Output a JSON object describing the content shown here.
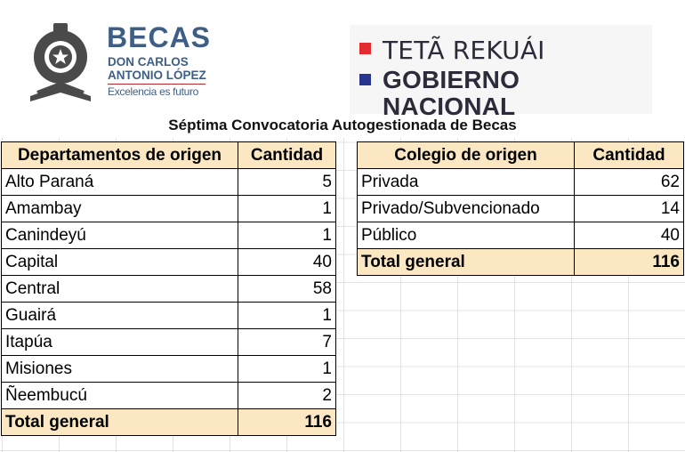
{
  "becas_logo": {
    "title": "BECAS",
    "subtitle_line1": "DON CARLOS",
    "subtitle_line2": "ANTONIO LÓPEZ",
    "slogan": "Excelencia es futuro",
    "color": "#3e5e86"
  },
  "gobierno_logo": {
    "line1": "TETÃ REKUÁI",
    "line2": "GOBIERNO NACIONAL",
    "colors": {
      "red": "#e32b2f",
      "blue": "#27358f"
    }
  },
  "title": "Séptima Convocatoria Autogestionada de Becas",
  "departamentos": {
    "header": [
      "Departamentos de origen",
      "Cantidad"
    ],
    "rows": [
      [
        "Alto Paraná",
        "5"
      ],
      [
        "Amambay",
        "1"
      ],
      [
        "Canindeyú",
        "1"
      ],
      [
        "Capital",
        "40"
      ],
      [
        "Central",
        "58"
      ],
      [
        "Guairá",
        "1"
      ],
      [
        "Itapúa",
        "7"
      ],
      [
        "Misiones",
        "1"
      ],
      [
        "Ñeembucú",
        "2"
      ]
    ],
    "total": [
      "Total general",
      "116"
    ]
  },
  "colegios": {
    "header": [
      "Colegio de origen",
      "Cantidad"
    ],
    "rows": [
      [
        "Privada",
        "62"
      ],
      [
        "Privado/Subvencionado",
        "14"
      ],
      [
        "Público",
        "40"
      ]
    ],
    "total": [
      "Total general",
      "116"
    ]
  },
  "header_fill_color": "#fbe7c2"
}
